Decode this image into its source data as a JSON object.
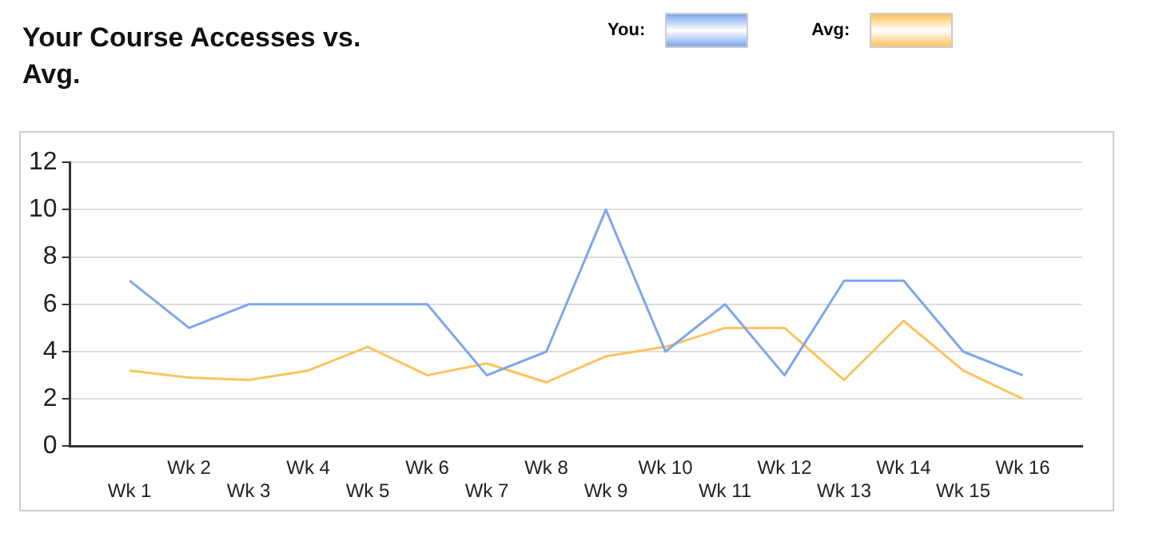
{
  "chart_data": {
    "type": "line",
    "title": "Your Course Accesses vs. Avg.",
    "categories": [
      "Wk 1",
      "Wk 2",
      "Wk 3",
      "Wk 4",
      "Wk 5",
      "Wk 6",
      "Wk 7",
      "Wk 8",
      "Wk 9",
      "Wk 10",
      "Wk 11",
      "Wk 12",
      "Wk 13",
      "Wk 14",
      "Wk 15",
      "Wk 16"
    ],
    "series": [
      {
        "name": "You:",
        "color": "#7ea6ee",
        "values": [
          7,
          5,
          6,
          6,
          6,
          6,
          3,
          4,
          10,
          4,
          6,
          3,
          7,
          7,
          4,
          3
        ]
      },
      {
        "name": "Avg:",
        "color": "#ffc35e",
        "values": [
          3.2,
          2.9,
          2.8,
          3.2,
          4.2,
          3.0,
          3.5,
          2.7,
          3.8,
          4.2,
          5.0,
          5.0,
          2.8,
          5.3,
          3.2,
          2.0
        ]
      }
    ],
    "ylim": [
      0,
      12
    ],
    "yticks": [
      0,
      2,
      4,
      6,
      8,
      10,
      12
    ],
    "grid": "y",
    "legend": "top",
    "marker": "none",
    "line_style": "solid"
  }
}
